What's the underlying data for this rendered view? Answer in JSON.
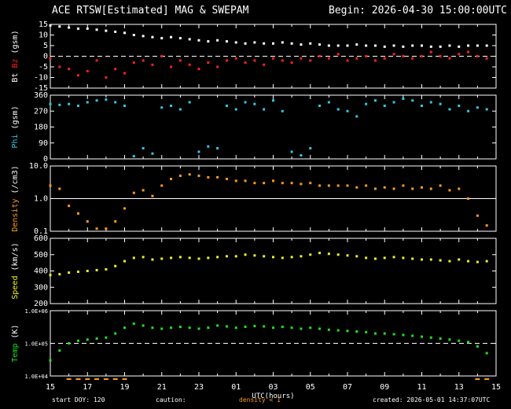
{
  "header": {
    "title": "ACE RTSW[Estimated] MAG & SWEPAM",
    "begin": "Begin: 2026-04-30 15:00:00UTC"
  },
  "footer": {
    "start_doy": "start DOY: 120",
    "caution_label": "caution:",
    "caution_text": "density < 1",
    "created": "created: 2026-05-01 14:37:07UTC"
  },
  "colors": {
    "bt": "#ffffff",
    "bz": "#ff2020",
    "phi": "#30c8e8",
    "density": "#ff9a20",
    "speed": "#f0f020",
    "temp": "#20e020",
    "caution": "#ff9a20"
  },
  "chart_data": [
    {
      "type": "scatter",
      "title": "",
      "ylabel": "Bt Bz (gsm)",
      "ylabel_parts": [
        {
          "text": "Bt",
          "series": "bt"
        },
        {
          "text": " Bz",
          "series": "bz"
        },
        {
          "text": " (gsm)",
          "series": "axis"
        }
      ],
      "ylim": [
        -15,
        15
      ],
      "yticks": [
        -15,
        -10,
        -5,
        0,
        5,
        10,
        15
      ],
      "dashed_lines": [
        0
      ],
      "series": [
        {
          "key": "bt",
          "x": [
            0,
            0.5,
            1,
            1.5,
            2,
            2.5,
            3,
            3.5,
            4,
            4.5,
            5,
            5.5,
            6,
            6.5,
            7,
            7.5,
            8,
            8.5,
            9,
            9.5,
            10,
            10.5,
            11,
            11.5,
            12,
            12.5,
            13,
            13.5,
            14,
            14.5,
            15,
            15.5,
            16,
            16.5,
            17,
            17.5,
            18,
            18.5,
            19,
            19.5,
            20,
            20.5,
            21,
            21.5,
            22,
            22.5,
            23,
            23.5
          ],
          "values": [
            14.5,
            14,
            13.5,
            13,
            13,
            12.5,
            12,
            11.5,
            11,
            10,
            9.5,
            9,
            8.5,
            9,
            8.5,
            8,
            7.5,
            7,
            7.5,
            7,
            6.5,
            6,
            6.5,
            6,
            6,
            6.5,
            6,
            5.5,
            6,
            5.5,
            5,
            5,
            5,
            5.5,
            5,
            5,
            4.5,
            5,
            4.5,
            5,
            5,
            4.5,
            4.5,
            5,
            4.5,
            5,
            5,
            5
          ]
        },
        {
          "key": "bz",
          "x": [
            0,
            0.5,
            1,
            1.5,
            2,
            2.5,
            3,
            3.5,
            4,
            4.5,
            5,
            5.5,
            6,
            6.5,
            7,
            7.5,
            8,
            8.5,
            9,
            9.5,
            10,
            10.5,
            11,
            11.5,
            12,
            12.5,
            13,
            13.5,
            14,
            14.5,
            15,
            15.5,
            16,
            16.5,
            17,
            17.5,
            18,
            18.5,
            19,
            19.5,
            20,
            20.5,
            21,
            21.5,
            22,
            22.5,
            23,
            23.5
          ],
          "values": [
            -1,
            -5,
            -6,
            -9,
            -7,
            -2,
            -10,
            -6,
            -8,
            -3,
            -2,
            -4,
            0,
            -5,
            -2,
            -4,
            -6,
            -3,
            -5,
            -2,
            -1,
            -3,
            -2,
            -4,
            -1,
            -2,
            -3,
            -1,
            -2,
            0,
            -1,
            1,
            -2,
            -1,
            0,
            -2,
            -1,
            1,
            0,
            -1,
            0,
            2,
            0,
            -1,
            1,
            2,
            0,
            -1
          ]
        }
      ]
    },
    {
      "type": "scatter",
      "title": "",
      "ylabel": "Phi (gsm)",
      "ylabel_parts": [
        {
          "text": "Phi",
          "series": "phi"
        },
        {
          "text": " (gsm)",
          "series": "axis"
        }
      ],
      "ylim": [
        0,
        360
      ],
      "yticks": [
        0,
        90,
        180,
        270,
        360
      ],
      "series": [
        {
          "key": "phi",
          "x": [
            0,
            0.5,
            1,
            1.5,
            2,
            2.5,
            3,
            3.5,
            4,
            4.5,
            5,
            5.5,
            6,
            6.5,
            7,
            7.5,
            8,
            8.5,
            9,
            9.5,
            10,
            10.5,
            11,
            11.5,
            12,
            12.5,
            13,
            13.5,
            14,
            14.5,
            15,
            15.5,
            16,
            16.5,
            17,
            17.5,
            18,
            18.5,
            19,
            19.5,
            20,
            20.5,
            21,
            21.5,
            22,
            22.5,
            23,
            23.5
          ],
          "values": [
            310,
            305,
            310,
            300,
            320,
            330,
            335,
            320,
            300,
            15,
            60,
            30,
            290,
            300,
            280,
            320,
            40,
            70,
            60,
            300,
            280,
            320,
            310,
            280,
            330,
            270,
            40,
            20,
            60,
            300,
            320,
            280,
            270,
            240,
            310,
            330,
            300,
            320,
            340,
            330,
            300,
            320,
            310,
            280,
            300,
            270,
            290,
            280
          ]
        }
      ]
    },
    {
      "type": "scatter",
      "title": "",
      "ylabel": "Density (/cm3)",
      "ylabel_parts": [
        {
          "text": "Density",
          "series": "density"
        },
        {
          "text": " (/cm3)",
          "series": "axis"
        }
      ],
      "yscale": "log",
      "ylim": [
        0.1,
        10
      ],
      "ytick_labels": [
        "0.1",
        "1.0",
        "10.0"
      ],
      "yticks": [
        0.1,
        1,
        10
      ],
      "solid_lines": [
        1
      ],
      "series": [
        {
          "key": "density",
          "x": [
            0,
            0.5,
            1,
            1.5,
            2,
            2.5,
            3,
            3.5,
            4,
            4.5,
            5,
            5.5,
            6,
            6.5,
            7,
            7.5,
            8,
            8.5,
            9,
            9.5,
            10,
            10.5,
            11,
            11.5,
            12,
            12.5,
            13,
            13.5,
            14,
            14.5,
            15,
            15.5,
            16,
            16.5,
            17,
            17.5,
            18,
            18.5,
            19,
            19.5,
            20,
            20.5,
            21,
            21.5,
            22,
            22.5,
            23,
            23.5
          ],
          "values": [
            2.5,
            2,
            0.6,
            0.35,
            0.2,
            0.12,
            0.12,
            0.2,
            0.5,
            1.5,
            1.8,
            1.2,
            2.5,
            4,
            5,
            5.5,
            5,
            4.5,
            4.5,
            4,
            3.5,
            3.5,
            3,
            3,
            3.5,
            3,
            3,
            2.8,
            3,
            2.5,
            2.5,
            2.5,
            2.5,
            2.2,
            2.5,
            2,
            2.2,
            2,
            2.5,
            2,
            2.2,
            2,
            2.5,
            1.8,
            2,
            1,
            0.3,
            0.15
          ]
        }
      ]
    },
    {
      "type": "scatter",
      "title": "",
      "ylabel": "Speed (km/s)",
      "ylabel_parts": [
        {
          "text": "Speed",
          "series": "speed"
        },
        {
          "text": " (km/s)",
          "series": "axis"
        }
      ],
      "ylim": [
        200,
        600
      ],
      "yticks": [
        200,
        300,
        400,
        500,
        600
      ],
      "series": [
        {
          "key": "speed",
          "x": [
            0,
            0.5,
            1,
            1.5,
            2,
            2.5,
            3,
            3.5,
            4,
            4.5,
            5,
            5.5,
            6,
            6.5,
            7,
            7.5,
            8,
            8.5,
            9,
            9.5,
            10,
            10.5,
            11,
            11.5,
            12,
            12.5,
            13,
            13.5,
            14,
            14.5,
            15,
            15.5,
            16,
            16.5,
            17,
            17.5,
            18,
            18.5,
            19,
            19.5,
            20,
            20.5,
            21,
            21.5,
            22,
            22.5,
            23,
            23.5
          ],
          "values": [
            375,
            380,
            390,
            395,
            400,
            405,
            410,
            430,
            460,
            480,
            485,
            470,
            475,
            480,
            485,
            480,
            475,
            480,
            485,
            490,
            490,
            500,
            495,
            490,
            485,
            480,
            485,
            490,
            500,
            510,
            505,
            500,
            495,
            490,
            480,
            475,
            480,
            485,
            480,
            475,
            470,
            470,
            465,
            460,
            470,
            460,
            455,
            460
          ]
        }
      ]
    },
    {
      "type": "scatter",
      "title": "",
      "ylabel": "Temp (K)",
      "ylabel_parts": [
        {
          "text": "Temp",
          "series": "temp"
        },
        {
          "text": " (K)",
          "series": "axis"
        }
      ],
      "yscale": "log",
      "ylim": [
        10000,
        1000000
      ],
      "ytick_labels": [
        "1.0E+04",
        "1.0E+05",
        "1.0E+06"
      ],
      "yticks": [
        10000,
        100000,
        1000000
      ],
      "dashed_lines": [
        100000
      ],
      "series": [
        {
          "key": "temp",
          "x": [
            0,
            0.5,
            1,
            1.5,
            2,
            2.5,
            3,
            3.5,
            4,
            4.5,
            5,
            5.5,
            6,
            6.5,
            7,
            7.5,
            8,
            8.5,
            9,
            9.5,
            10,
            10.5,
            11,
            11.5,
            12,
            12.5,
            13,
            13.5,
            14,
            14.5,
            15,
            15.5,
            16,
            16.5,
            17,
            17.5,
            18,
            18.5,
            19,
            19.5,
            20,
            20.5,
            21,
            21.5,
            22,
            22.5,
            23,
            23.5
          ],
          "values": [
            30000,
            60000,
            100000,
            120000,
            130000,
            140000,
            150000,
            200000,
            300000,
            400000,
            350000,
            300000,
            280000,
            300000,
            320000,
            300000,
            280000,
            300000,
            350000,
            330000,
            300000,
            320000,
            340000,
            330000,
            300000,
            320000,
            300000,
            280000,
            300000,
            280000,
            260000,
            250000,
            240000,
            230000,
            220000,
            200000,
            200000,
            190000,
            180000,
            170000,
            160000,
            150000,
            140000,
            130000,
            120000,
            110000,
            80000,
            50000
          ]
        }
      ]
    }
  ],
  "x_axis": {
    "label": "UTC(hours)",
    "range": [
      0,
      24
    ],
    "tick_labels": [
      "15",
      "17",
      "19",
      "21",
      "23",
      "01",
      "03",
      "05",
      "07",
      "09",
      "11",
      "13",
      "15"
    ],
    "tick_positions": [
      0,
      2,
      4,
      6,
      8,
      10,
      12,
      14,
      16,
      18,
      20,
      22,
      24
    ]
  }
}
